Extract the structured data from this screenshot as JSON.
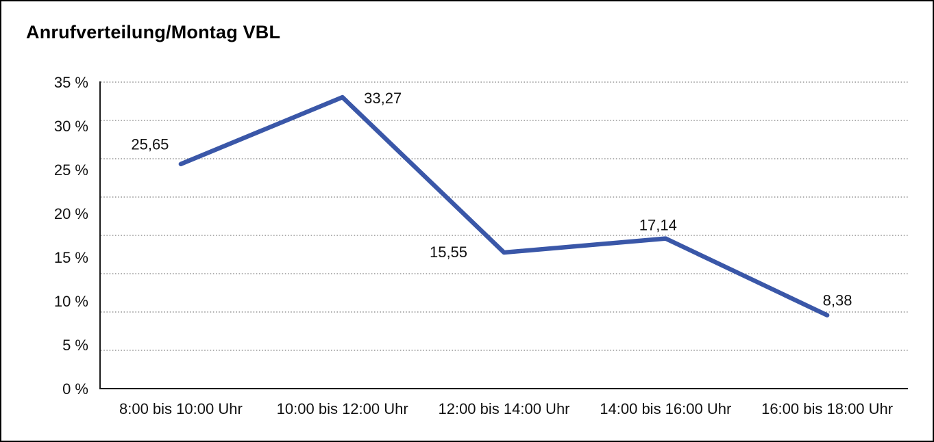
{
  "frame": {
    "background": "#ffffff",
    "border_color": "#000000"
  },
  "chart_data": {
    "type": "line",
    "title": "Anrufverteilung/Montag VBL",
    "categories": [
      "8:00 bis 10:00 Uhr",
      "10:00 bis 12:00 Uhr",
      "12:00 bis 14:00 Uhr",
      "14:00 bis 16:00 Uhr",
      "16:00 bis 18:00 Uhr"
    ],
    "values": [
      25.65,
      33.27,
      15.55,
      17.14,
      8.38
    ],
    "data_labels": [
      "25,65",
      "33,27",
      "15,55",
      "17,14",
      "8,38"
    ],
    "y_tick_labels": [
      "0 %",
      "5 %",
      "10 %",
      "15 %",
      "20 %",
      "25 %",
      "30 %",
      "35 %"
    ],
    "ylim": [
      0,
      35
    ],
    "ytick_step": 5,
    "gridline_divisions": 8,
    "grid": "horizontal-dotted",
    "legend": "none",
    "line_color": "#3A57A8",
    "axis_color": "#1a1a1a",
    "gridline_color": "#7f7f7f",
    "xlabel": "",
    "ylabel": ""
  }
}
